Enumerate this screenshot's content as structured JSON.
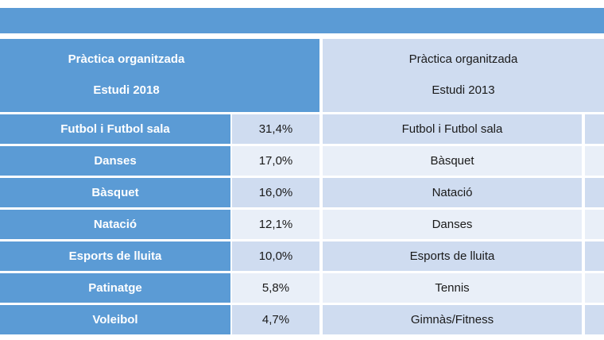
{
  "header_2018": {
    "line1": "Pràctica organitzada",
    "line2": "Estudi 2018"
  },
  "header_2013": {
    "line1": "Pràctica organitzada",
    "line2": "Estudi 2013"
  },
  "rows": [
    {
      "sport_2018": "Futbol i Futbol sala",
      "pct_2018": "31,4%",
      "sport_2013": "Futbol i Futbol sala"
    },
    {
      "sport_2018": "Danses",
      "pct_2018": "17,0%",
      "sport_2013": "Bàsquet"
    },
    {
      "sport_2018": "Bàsquet",
      "pct_2018": "16,0%",
      "sport_2013": "Natació"
    },
    {
      "sport_2018": "Natació",
      "pct_2018": "12,1%",
      "sport_2013": "Danses"
    },
    {
      "sport_2018": "Esports de lluita",
      "pct_2018": "10,0%",
      "sport_2013": "Esports de lluita"
    },
    {
      "sport_2018": "Patinatge",
      "pct_2018": "5,8%",
      "sport_2013": "Tennis"
    },
    {
      "sport_2018": "Voleibol",
      "pct_2018": "4,7%",
      "sport_2013": "Gimnàs/Fitness"
    }
  ],
  "colors": {
    "header_blue": "#5b9bd5",
    "light_blue": "#cfdcf0",
    "lighter_blue": "#e9eff8"
  }
}
